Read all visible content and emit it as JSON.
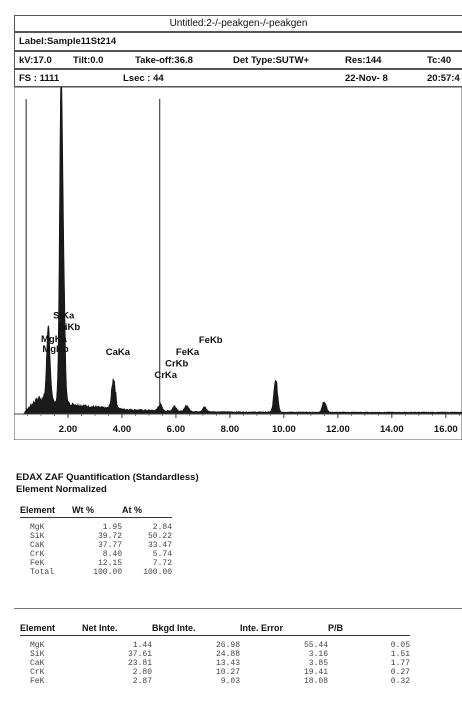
{
  "header": {
    "title": "Untitled:2-/-peakgen-/-peakgen",
    "label": "Label:Sample11St214",
    "kv": "kV:17.0",
    "tilt": "Tilt:0.0",
    "takeoff": "Take-off:36.8",
    "det_type": "Det Type:SUTW+",
    "res": "Res:144",
    "tc": "Tc:40",
    "fs": "FS : 1111",
    "lsec": "Lsec : 44",
    "date": "22-Nov- 8",
    "time": "20:57:4"
  },
  "chart_data": {
    "type": "line",
    "xlabel": "",
    "ylabel": "",
    "xlim": [
      0,
      16.6
    ],
    "ylim": [
      0,
      1111
    ],
    "x_ticks": [
      "2.00",
      "4.00",
      "6.00",
      "8.00",
      "10.00",
      "12.00",
      "14.00",
      "16.00"
    ],
    "x_tick_values": [
      2,
      4,
      6,
      8,
      10,
      12,
      14,
      16
    ],
    "cursor_markers_kev": [
      0.45,
      5.4
    ],
    "peaks": [
      {
        "label": "MgKa",
        "x": 1.25,
        "y": 160
      },
      {
        "label": "MgKb",
        "x": 1.3,
        "y": 130
      },
      {
        "label": "SiKa",
        "x": 1.74,
        "y": 1080
      },
      {
        "label": "SiKb",
        "x": 1.84,
        "y": 380
      },
      {
        "label": "CaKa",
        "x": 3.69,
        "y": 105
      },
      {
        "label": "CrKa",
        "x": 5.41,
        "y": 22
      },
      {
        "label": "CrKb",
        "x": 5.95,
        "y": 18
      },
      {
        "label": "FeKa",
        "x": 6.4,
        "y": 20
      },
      {
        "label": "FeKb",
        "x": 7.06,
        "y": 15
      },
      {
        "label": "",
        "x": 9.7,
        "y": 110
      },
      {
        "label": "",
        "x": 11.5,
        "y": 40
      }
    ],
    "annotations": [
      {
        "text": "SiKa",
        "x": 1.45,
        "y": 330
      },
      {
        "text": "SiKb",
        "x": 1.65,
        "y": 290
      },
      {
        "text": "MgKa",
        "x": 1.0,
        "y": 250
      },
      {
        "text": "MgKb",
        "x": 1.05,
        "y": 215
      },
      {
        "text": "CaKa",
        "x": 3.4,
        "y": 205
      },
      {
        "text": "FeKb",
        "x": 6.85,
        "y": 245
      },
      {
        "text": "FeKa",
        "x": 6.0,
        "y": 205
      },
      {
        "text": "CrKb",
        "x": 5.6,
        "y": 165
      },
      {
        "text": "CrKa",
        "x": 5.2,
        "y": 125
      }
    ]
  },
  "quant": {
    "title": "EDAX ZAF Quantification (Standardless)",
    "subtitle": "Element Normalized",
    "headers": [
      "Element",
      "Wt %",
      "At %"
    ],
    "rows": [
      [
        "MgK",
        "1.95",
        "2.84"
      ],
      [
        "SiK",
        "39.72",
        "50.22"
      ],
      [
        "CaK",
        "37.77",
        "33.47"
      ],
      [
        "CrK",
        "8.40",
        "5.74"
      ],
      [
        "FeK",
        "12.15",
        "7.72"
      ],
      [
        "Total",
        "100.00",
        "100.00"
      ]
    ]
  },
  "intensity": {
    "headers": [
      "Element",
      "Net Inte.",
      "Bkgd Inte.",
      "Inte. Error",
      "P/B"
    ],
    "rows": [
      [
        "MgK",
        "1.44",
        "26.98",
        "55.44",
        "0.05"
      ],
      [
        "SiK",
        "37.61",
        "24.88",
        "3.16",
        "1.51"
      ],
      [
        "CaK",
        "23.81",
        "13.43",
        "3.85",
        "1.77"
      ],
      [
        "CrK",
        "2.80",
        "10.27",
        "19.41",
        "0.27"
      ],
      [
        "FeK",
        "2.87",
        "9.03",
        "18.08",
        "0.32"
      ]
    ]
  }
}
